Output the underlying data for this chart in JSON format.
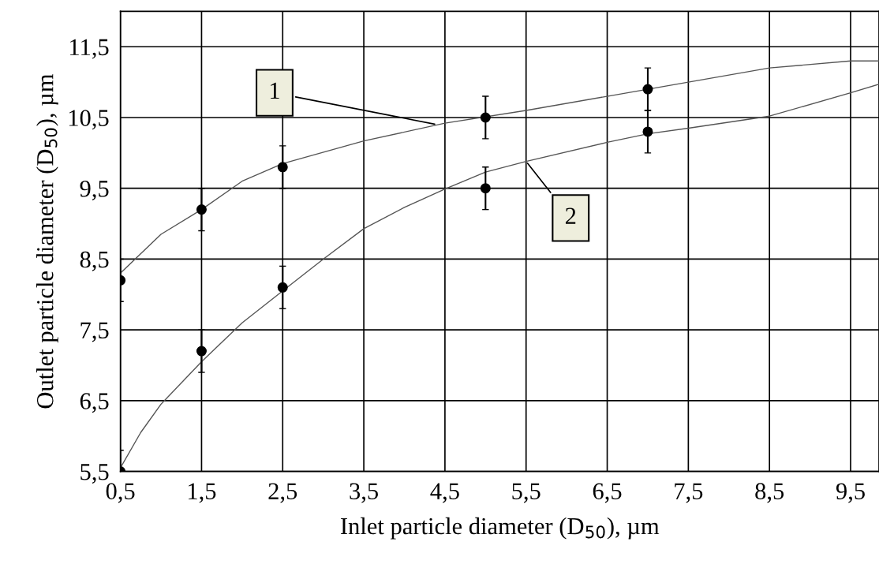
{
  "chart_data": {
    "type": "scatter",
    "xlabel": "Inlet particle diameter (D$_{50}$), µm",
    "ylabel": "Outlet particle diameter (D$_{50}$), µm",
    "xlim": [
      0.5,
      9.85
    ],
    "ylim": [
      5.5,
      12.0
    ],
    "xticks": [
      {
        "value": 0.5,
        "label": "0,5"
      },
      {
        "value": 1.5,
        "label": "1,5"
      },
      {
        "value": 2.5,
        "label": "2,5"
      },
      {
        "value": 3.5,
        "label": "3,5"
      },
      {
        "value": 4.5,
        "label": "4,5"
      },
      {
        "value": 5.5,
        "label": "5,5"
      },
      {
        "value": 6.5,
        "label": "6,5"
      },
      {
        "value": 7.5,
        "label": "7,5"
      },
      {
        "value": 8.5,
        "label": "8,5"
      },
      {
        "value": 9.5,
        "label": "9,5"
      }
    ],
    "yticks": [
      {
        "value": 5.5,
        "label": "5,5"
      },
      {
        "value": 6.5,
        "label": "6,5"
      },
      {
        "value": 7.5,
        "label": "7,5"
      },
      {
        "value": 8.5,
        "label": "8,5"
      },
      {
        "value": 9.5,
        "label": "9,5"
      },
      {
        "value": 10.5,
        "label": "10,5"
      },
      {
        "value": 11.5,
        "label": "11,5"
      }
    ],
    "grid": true,
    "series": [
      {
        "color": "#000000",
        "marker": "circle",
        "x": [
          0.5,
          1.5,
          2.5,
          5,
          7
        ],
        "values": [
          8.2,
          9.2,
          9.8,
          10.5,
          10.9
        ],
        "errors": [
          0.3,
          0.3,
          0.3,
          0.3,
          0.3
        ]
      },
      {
        "color": "#000000",
        "marker": "circle",
        "x": [
          0.5,
          1.5,
          2.5,
          5,
          7
        ],
        "values": [
          5.5,
          7.2,
          8.1,
          9.5,
          10.3
        ],
        "errors": [
          0.3,
          0.3,
          0.3,
          0.3,
          0.3
        ]
      },
      {
        "type": "line",
        "color": "#555555",
        "x": [
          0.5,
          1,
          1.5,
          2,
          2.5,
          3.5,
          4.5,
          5.5,
          6.5,
          7.5,
          8.5,
          9.5,
          9.85
        ],
        "values": [
          8.3,
          8.85,
          9.2,
          9.6,
          9.85,
          10.17,
          10.42,
          10.6,
          10.8,
          11.0,
          11.2,
          11.3,
          11.3
        ]
      },
      {
        "type": "line",
        "color": "#555555",
        "x": [
          0.5,
          0.75,
          1,
          1.5,
          2,
          2.5,
          3,
          3.5,
          4,
          4.5,
          5,
          5.5,
          6.5,
          7,
          7.5,
          8.5,
          9.5,
          9.85
        ],
        "values": [
          5.55,
          6.05,
          6.45,
          7.05,
          7.6,
          8.05,
          8.5,
          8.93,
          9.23,
          9.49,
          9.73,
          9.88,
          10.15,
          10.27,
          10.35,
          10.52,
          10.85,
          10.97
        ]
      }
    ],
    "annotations": [
      {
        "text": "1",
        "x": 4.4,
        "y": 10.4
      },
      {
        "text": "2",
        "x": 5.5,
        "y": 9.88
      }
    ]
  }
}
